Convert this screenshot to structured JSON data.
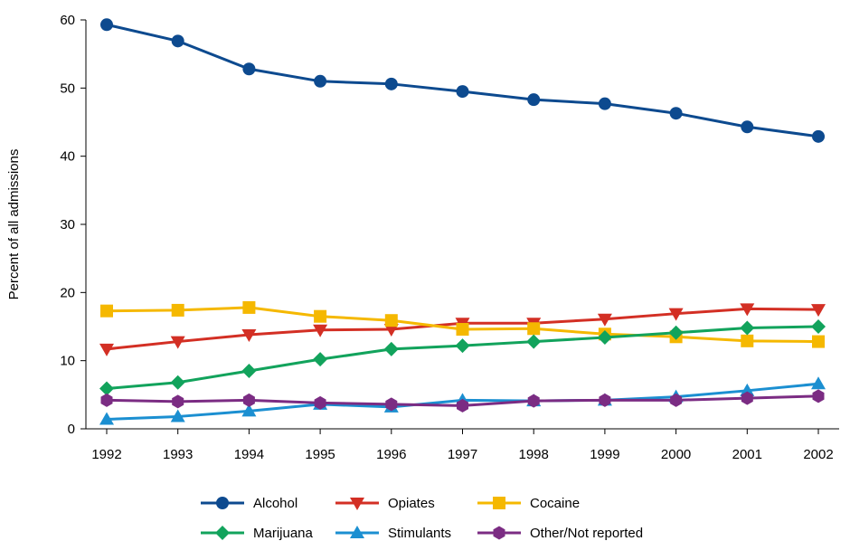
{
  "chart_data": {
    "type": "line",
    "title": "",
    "xlabel": "",
    "ylabel": "Percent of all admissions",
    "ylim": [
      0,
      60
    ],
    "yticks": [
      0,
      10,
      20,
      30,
      40,
      50,
      60
    ],
    "grid": false,
    "legend_position": "bottom",
    "categories": [
      "1992",
      "1993",
      "1994",
      "1995",
      "1996",
      "1997",
      "1998",
      "1999",
      "2000",
      "2001",
      "2002"
    ],
    "series": [
      {
        "name": "Alcohol",
        "color": "#0d4a8f",
        "marker": "circle",
        "values": [
          59.3,
          56.9,
          52.8,
          51.0,
          50.6,
          49.5,
          48.3,
          47.7,
          46.3,
          44.3,
          42.9
        ]
      },
      {
        "name": "Opiates",
        "color": "#d32f24",
        "marker": "triangle-down",
        "values": [
          11.7,
          12.8,
          13.8,
          14.5,
          14.6,
          15.5,
          15.5,
          16.1,
          16.9,
          17.6,
          17.5
        ]
      },
      {
        "name": "Cocaine",
        "color": "#f5b800",
        "marker": "square",
        "values": [
          17.3,
          17.4,
          17.8,
          16.5,
          15.9,
          14.6,
          14.7,
          13.9,
          13.5,
          12.9,
          12.8
        ]
      },
      {
        "name": "Marijuana",
        "color": "#12a35c",
        "marker": "diamond",
        "values": [
          5.9,
          6.8,
          8.5,
          10.2,
          11.7,
          12.2,
          12.8,
          13.4,
          14.1,
          14.8,
          15.0
        ]
      },
      {
        "name": "Stimulants",
        "color": "#1b8fd1",
        "marker": "triangle-up",
        "values": [
          1.4,
          1.8,
          2.6,
          3.6,
          3.2,
          4.2,
          4.1,
          4.2,
          4.7,
          5.6,
          6.6
        ]
      },
      {
        "name": "Other/Not reported",
        "color": "#7b2c83",
        "marker": "hexagon",
        "values": [
          4.2,
          4.0,
          4.2,
          3.8,
          3.6,
          3.4,
          4.1,
          4.2,
          4.2,
          4.5,
          4.8
        ]
      }
    ]
  }
}
